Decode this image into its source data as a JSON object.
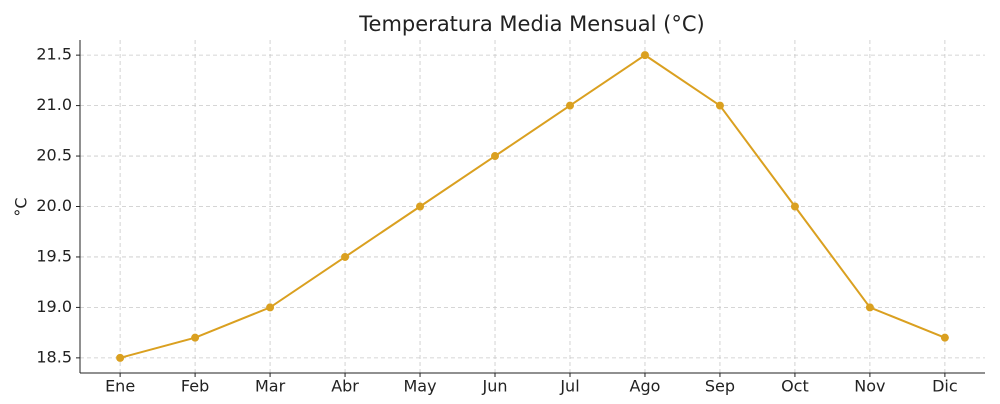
{
  "chart_data": {
    "type": "line",
    "title": "Temperatura Media Mensual (°C)",
    "y_label": "°C",
    "categories": [
      "Ene",
      "Feb",
      "Mar",
      "Abr",
      "May",
      "Jun",
      "Jul",
      "Ago",
      "Sep",
      "Oct",
      "Nov",
      "Dic"
    ],
    "values": [
      18.5,
      18.7,
      19.0,
      19.5,
      20.0,
      20.5,
      21.0,
      21.5,
      21.0,
      20.0,
      19.0,
      18.7
    ],
    "color": "#daa020",
    "ylim": [
      18.35,
      21.65
    ],
    "yticks": [
      18.5,
      {
        "value": 19,
        "label": "19.0"
      },
      19.5,
      {
        "value": 20,
        "label": "20.0"
      },
      20.5,
      {
        "value": 21,
        "label": "21.0"
      },
      21.5
    ],
    "grid": true
  }
}
